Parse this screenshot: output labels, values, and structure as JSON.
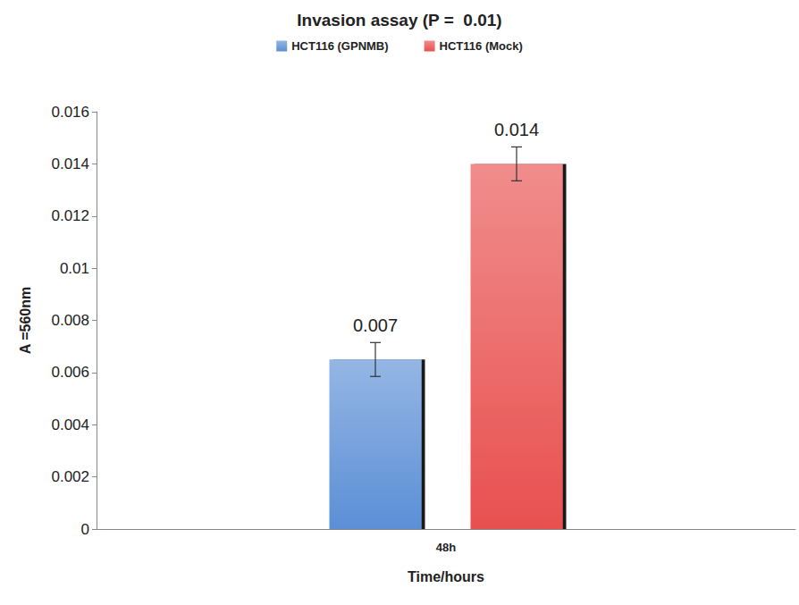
{
  "chart_data": {
    "type": "bar",
    "title": "Invasion assay (P =  0.01)",
    "x_label": "Time/hours",
    "y_label": "A =560nm",
    "categories": [
      "48h"
    ],
    "series": [
      {
        "name": "HCT116 (GPNMB)",
        "color": "#5b8fd6",
        "values": [
          0.0065
        ],
        "errors": [
          0.00065
        ],
        "value_labels": [
          "0.007"
        ]
      },
      {
        "name": "HCT116 (Mock)",
        "color": "#e8504f",
        "values": [
          0.014
        ],
        "errors": [
          0.00065
        ],
        "value_labels": [
          "0.014"
        ]
      }
    ],
    "ylim": [
      0,
      0.016
    ],
    "yticks": [
      0,
      0.002,
      0.004,
      0.006,
      0.008,
      0.01,
      0.012,
      0.014,
      0.016
    ],
    "grid": false,
    "legend": "top",
    "data_labels": true
  }
}
